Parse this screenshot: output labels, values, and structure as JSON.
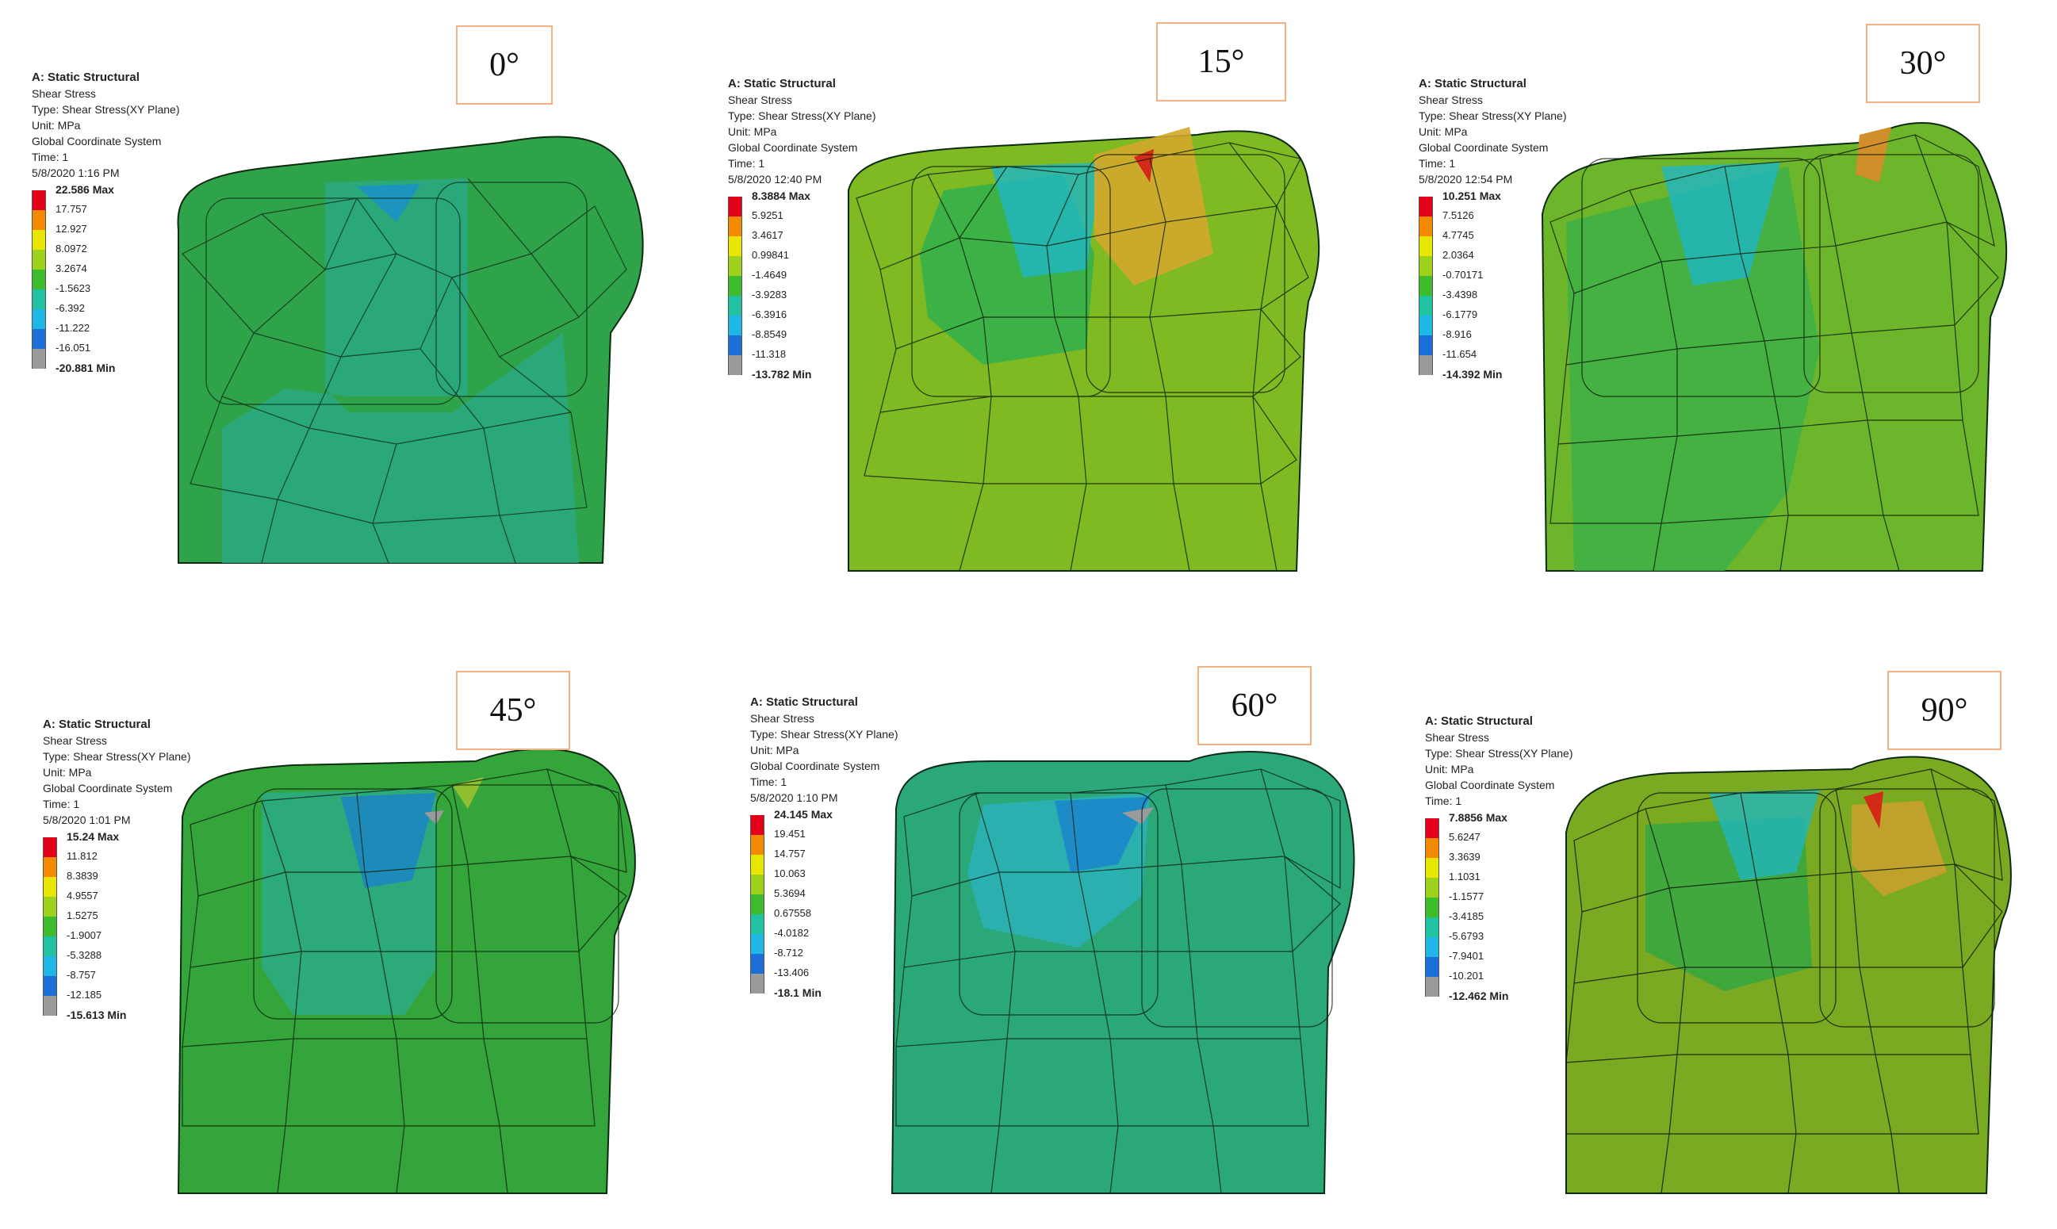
{
  "panels": [
    {
      "angle": "0°",
      "title": "A: Static Structural",
      "lines": [
        "Shear Stress",
        "Type: Shear Stress(XY Plane)",
        "Unit: MPa",
        "Global Coordinate System",
        "Time: 1",
        "5/8/2020 1:16 PM"
      ],
      "max_label": "22.586 Max",
      "ticks": [
        "17.757",
        "12.927",
        "8.0972",
        "3.2674",
        "-1.5623",
        "-6.392",
        "-11.222",
        "-16.051"
      ],
      "min_label": "-20.881 Min",
      "base_color": "#2fa34a",
      "region_color": "#2aa87e",
      "hot_color": "#2aa87e"
    },
    {
      "angle": "15°",
      "title": "A: Static Structural",
      "lines": [
        "Shear Stress",
        "Type: Shear Stress(XY Plane)",
        "Unit: MPa",
        "Global Coordinate System",
        "Time: 1",
        "5/8/2020 12:40 PM"
      ],
      "max_label": "8.3884 Max",
      "ticks": [
        "5.9251",
        "3.4617",
        "0.99841",
        "-1.4649",
        "-3.9283",
        "-6.3916",
        "-8.8549",
        "-11.318"
      ],
      "min_label": "-13.782 Min",
      "base_color": "#7fba23",
      "region_color": "#34b04a",
      "hot_color": "#d4a72c"
    },
    {
      "angle": "30°",
      "title": "A: Static Structural",
      "lines": [
        "Shear Stress",
        "Type: Shear Stress(XY Plane)",
        "Unit: MPa",
        "Global Coordinate System",
        "Time: 1",
        "5/8/2020 12:54 PM"
      ],
      "max_label": "10.251 Max",
      "ticks": [
        "7.5126",
        "4.7745",
        "2.0364",
        "-0.70171",
        "-3.4398",
        "-6.1779",
        "-8.916",
        "-11.654"
      ],
      "min_label": "-14.392 Min",
      "base_color": "#6db52a",
      "region_color": "#3db047",
      "hot_color": "#d08f2a"
    },
    {
      "angle": "45°",
      "title": "A: Static Structural",
      "lines": [
        "Shear Stress",
        "Type: Shear Stress(XY Plane)",
        "Unit: MPa",
        "Global Coordinate System",
        "Time: 1",
        "5/8/2020 1:01 PM"
      ],
      "max_label": "15.24 Max",
      "ticks": [
        "11.812",
        "8.3839",
        "4.9557",
        "1.5275",
        "-1.9007",
        "-5.3288",
        "-8.757",
        "-12.185"
      ],
      "min_label": "-15.613 Min",
      "base_color": "#33a53a",
      "region_color": "#2bab82",
      "hot_color": "#8fbf2f"
    },
    {
      "angle": "60°",
      "title": "A: Static Structural",
      "lines": [
        "Shear Stress",
        "Type: Shear Stress(XY Plane)",
        "Unit: MPa",
        "Global Coordinate System",
        "Time: 1",
        "5/8/2020 1:10 PM"
      ],
      "max_label": "24.145 Max",
      "ticks": [
        "19.451",
        "14.757",
        "10.063",
        "5.3694",
        "0.67558",
        "-4.0182",
        "-8.712",
        "-13.406"
      ],
      "min_label": "-18.1 Min",
      "base_color": "#2aa878",
      "region_color": "#2ab0b5",
      "hot_color": "#2aa878"
    },
    {
      "angle": "90°",
      "title": "A: Static Structural",
      "lines": [
        "Shear Stress",
        "Type: Shear Stress(XY Plane)",
        "Unit: MPa",
        "Global Coordinate System",
        "Time: 1"
      ],
      "max_label": "7.8856 Max",
      "ticks": [
        "5.6247",
        "3.3639",
        "1.1031",
        "-1.1577",
        "-3.4185",
        "-5.6793",
        "-7.9401",
        "-10.201"
      ],
      "min_label": "-12.462 Min",
      "base_color": "#7aaa22",
      "region_color": "#3aa640",
      "hot_color": "#c7a02e"
    }
  ],
  "legend_colors": [
    "#e3001b",
    "#f18a00",
    "#e6e600",
    "#9ed11c",
    "#3dbd2b",
    "#21c2a0",
    "#1fb7e6",
    "#1a6fd8",
    "#9a9a9a"
  ]
}
